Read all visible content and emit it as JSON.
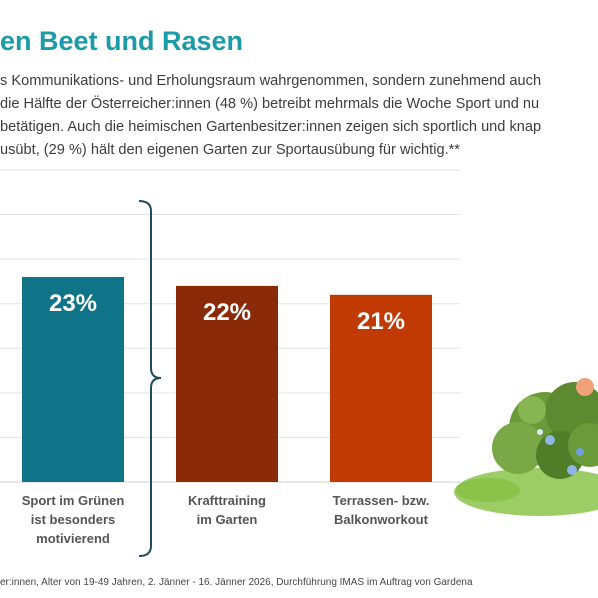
{
  "header": {
    "title": "en Beet und Rasen",
    "intro_lines": [
      "s Kommunikations- und Erholungsraum wahrgenommen, sondern zunehmend auch",
      " die Hälfte der Österreicher:innen (48 %) betreibt mehrmals die Woche Sport und nu",
      "betätigen. Auch die heimischen Gartenbesitzer:innen zeigen sich sportlich und knap",
      "usübt, (29 %) hält den eigenen Garten zur Sportausübung für wichtig.**"
    ]
  },
  "chart_data": {
    "type": "bar",
    "categories": [
      [
        "Sport im Grünen",
        "ist besonders",
        "motivierend"
      ],
      [
        "Krafttraining",
        "im Garten"
      ],
      [
        "Terrassen- bzw.",
        "Balkonworkout"
      ]
    ],
    "values": [
      23,
      22,
      21
    ],
    "value_labels": [
      "23%",
      "22%",
      "21%"
    ],
    "colors": [
      "#0f7487",
      "#8b2a08",
      "#c13a03"
    ],
    "ylim": [
      0,
      35
    ],
    "grid": true,
    "title": "",
    "xlabel": "",
    "ylabel": ""
  },
  "footnote": "er:innen, Alter von 19-49 Jahren, 2. Jänner - 16. Jänner 2026, Durchführung IMAS im Auftrag von Gardena"
}
